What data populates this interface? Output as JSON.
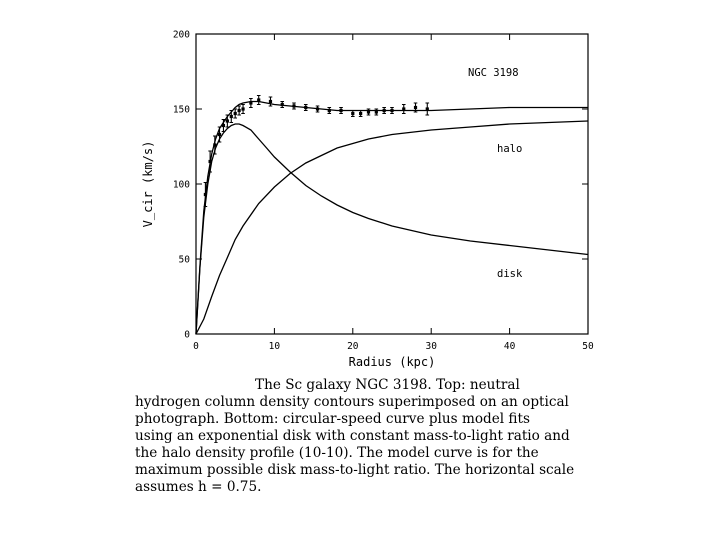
{
  "chart_data": {
    "type": "line",
    "title": "",
    "xlabel": "Radius (kpc)",
    "ylabel": "V_cir (km/s)",
    "xlim": [
      0,
      50
    ],
    "ylim": [
      0,
      200
    ],
    "x_ticks": [
      0,
      10,
      20,
      30,
      40,
      50
    ],
    "y_ticks": [
      0,
      50,
      100,
      150,
      200
    ],
    "grid": false,
    "annotations": [
      "NGC 3198",
      "halo",
      "disk"
    ],
    "series": [
      {
        "name": "",
        "kind": "line",
        "x": [
          0,
          0.5,
          1,
          1.5,
          2,
          2.5,
          3,
          3.5,
          4,
          4.5,
          5,
          5.5,
          6,
          7,
          8,
          9,
          10,
          12,
          14,
          16,
          18,
          20,
          22,
          25,
          28,
          30,
          35,
          40,
          45,
          50
        ],
        "y": [
          0,
          45,
          82,
          105,
          120,
          130,
          137,
          141,
          145,
          148,
          151,
          153,
          154,
          155,
          155,
          154,
          153,
          152,
          151,
          150,
          149,
          149,
          149,
          149,
          149,
          149,
          150,
          151,
          151,
          151
        ]
      },
      {
        "name": "halo",
        "kind": "line",
        "x": [
          0,
          1,
          2,
          3,
          4,
          5,
          6,
          8,
          10,
          12,
          14,
          16,
          18,
          20,
          22,
          25,
          30,
          35,
          40,
          45,
          50
        ],
        "y": [
          0,
          10,
          25,
          39,
          51,
          63,
          72,
          87,
          98,
          107,
          114,
          119,
          124,
          127,
          130,
          133,
          136,
          138,
          140,
          141,
          142
        ]
      },
      {
        "name": "disk",
        "kind": "line",
        "x": [
          0,
          0.5,
          1,
          1.5,
          2,
          2.5,
          3,
          3.5,
          4,
          4.5,
          5,
          5.5,
          6,
          7,
          8,
          9,
          10,
          12,
          14,
          16,
          18,
          20,
          22,
          25,
          30,
          35,
          40,
          45,
          50
        ],
        "y": [
          0,
          44,
          78,
          100,
          115,
          124,
          130,
          134,
          137,
          139,
          140,
          140,
          139,
          136,
          130,
          124,
          118,
          108,
          99,
          92,
          86,
          81,
          77,
          72,
          66,
          62,
          59,
          56,
          53
        ]
      },
      {
        "name": "",
        "kind": "errorbar",
        "x": [
          1.2,
          1.8,
          2.4,
          3.0,
          3.5,
          4.0,
          4.5,
          5.0,
          5.5,
          6.0,
          7.0,
          8.0,
          9.5,
          11.0,
          12.5,
          14.0,
          15.5,
          17.0,
          18.5,
          20.0,
          21.0,
          22.0,
          23.0,
          24.0,
          25.0,
          26.5,
          28.0,
          29.5
        ],
        "y": [
          93,
          115,
          126,
          133,
          139,
          142,
          145,
          147,
          149,
          150,
          154,
          156,
          155,
          153,
          152,
          151,
          150,
          149,
          149,
          147,
          147,
          148,
          148,
          149,
          149,
          150,
          151,
          150
        ],
        "err": [
          8,
          7,
          6,
          5,
          4,
          4,
          4,
          3,
          3,
          3,
          3,
          3,
          3,
          2,
          2,
          2,
          2,
          2,
          2,
          2,
          2,
          2,
          2,
          2,
          2,
          3,
          3,
          4
        ]
      }
    ]
  },
  "caption": {
    "lines": [
      "The Sc galaxy NGC 3198.  Top:  neutral",
      "hydrogen column density contours superimposed on an optical",
      "photograph.  Bottom:  circular-speed curve plus model fits",
      "using an exponential disk with constant mass-to-light ratio and",
      "the halo density profile (10-10).  The model curve is for the",
      "maximum possible disk mass-to-light ratio.  The horizontal scale",
      "assumes h = 0.75."
    ]
  }
}
